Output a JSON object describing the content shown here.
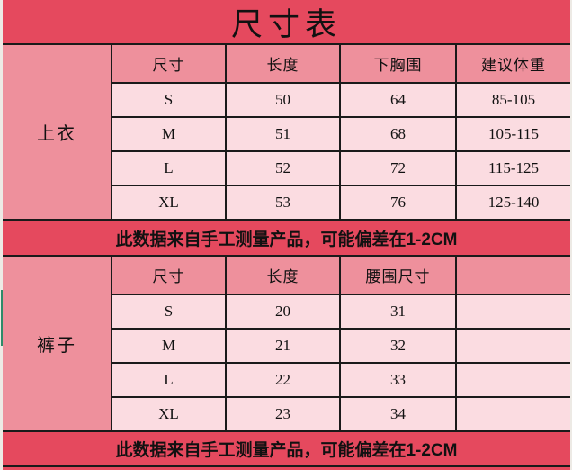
{
  "title": "尺寸表",
  "colors": {
    "accent_red": "#E5495E",
    "header_pink": "#EE909C",
    "cell_pink": "#FBDCE1",
    "border_black": "#1A1A1A",
    "margin_background": "#EDEAE5",
    "green_strip": "#2E8B69",
    "text": "#111111"
  },
  "sections": [
    {
      "category": "上衣",
      "headers": [
        "尺寸",
        "长度",
        "下胸围",
        "建议体重"
      ],
      "rows": [
        [
          "S",
          "50",
          "64",
          "85-105"
        ],
        [
          "M",
          "51",
          "68",
          "105-115"
        ],
        [
          "L",
          "52",
          "72",
          "115-125"
        ],
        [
          "XL",
          "53",
          "76",
          "125-140"
        ]
      ],
      "note": "此数据来自手工测量产品，可能偏差在1-2CM"
    },
    {
      "category": "裤子",
      "headers": [
        "尺寸",
        "长度",
        "腰围尺寸",
        ""
      ],
      "rows": [
        [
          "S",
          "20",
          "31",
          ""
        ],
        [
          "M",
          "21",
          "32",
          ""
        ],
        [
          "L",
          "22",
          "33",
          ""
        ],
        [
          "XL",
          "23",
          "34",
          ""
        ]
      ],
      "note": "此数据来自手工测量产品，可能偏差在1-2CM"
    }
  ]
}
